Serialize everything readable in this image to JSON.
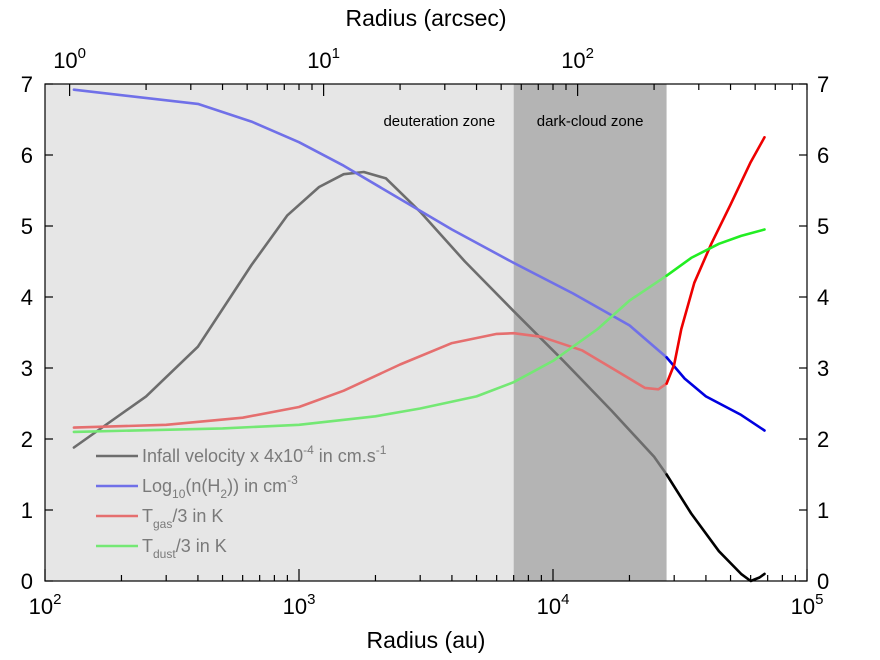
{
  "chart_data": {
    "type": "line",
    "title": "",
    "xlabel": "Radius (au)",
    "x_top_label": "Radius (arcsec)",
    "xscale": "log",
    "xlim": [
      100,
      100000
    ],
    "x_tick_labels": [
      {
        "base": "10",
        "exp": "2",
        "value": 100
      },
      {
        "base": "10",
        "exp": "3",
        "value": 1000
      },
      {
        "base": "10",
        "exp": "4",
        "value": 10000
      },
      {
        "base": "10",
        "exp": "5",
        "value": 100000
      }
    ],
    "x_top_tick_labels": [
      {
        "base": "10",
        "exp": "0",
        "value_au": 125
      },
      {
        "base": "10",
        "exp": "1",
        "value_au": 1250
      },
      {
        "base": "10",
        "exp": "2",
        "value_au": 12500
      }
    ],
    "ylim": [
      0,
      7
    ],
    "y_tick_labels": [
      "0",
      "1",
      "2",
      "3",
      "4",
      "5",
      "6",
      "7"
    ],
    "grid": false,
    "legend_position": "bottom-left",
    "zones": [
      {
        "label": "deuteration zone",
        "x_from": 100,
        "x_to": 7000,
        "color": "#e6e6e6"
      },
      {
        "label": "dark-cloud zone",
        "x_from": 7000,
        "x_to": 28000,
        "color": "#b4b4b4"
      }
    ],
    "series": [
      {
        "name": "Infall velocity x 4x10-4 in cm.s-1",
        "legend": {
          "pre": "Infall velocity x 4x10",
          "sup": "-4",
          "post": " in cm.s",
          "sup2": "-1"
        },
        "color_in_zone": "#6d6d6d",
        "color_outside": "#000000",
        "x": [
          130,
          250,
          400,
          650,
          900,
          1200,
          1500,
          1800,
          2200,
          3000,
          4500,
          7000,
          11000,
          17000,
          25000,
          28000,
          35000,
          45000,
          55000,
          60000,
          65000,
          68000
        ],
        "y": [
          1.88,
          2.6,
          3.3,
          4.45,
          5.15,
          5.55,
          5.73,
          5.76,
          5.67,
          5.2,
          4.5,
          3.8,
          3.1,
          2.4,
          1.75,
          1.5,
          0.95,
          0.42,
          0.1,
          0.0,
          0.05,
          0.1
        ]
      },
      {
        "name": "Log10(n(H2)) in cm-3",
        "legend": {
          "pre": "Log",
          "sub": "10",
          "mid": "(n(H",
          "sub2": "2",
          "post": ")) in cm",
          "sup": "-3"
        },
        "color_in_zone": "#7070e8",
        "color_outside": "#0000e0",
        "x": [
          130,
          400,
          650,
          1000,
          1500,
          2500,
          4000,
          7000,
          12000,
          20000,
          28000,
          33000,
          40000,
          55000,
          68000
        ],
        "y": [
          6.92,
          6.72,
          6.47,
          6.18,
          5.85,
          5.38,
          4.95,
          4.48,
          4.05,
          3.6,
          3.15,
          2.85,
          2.6,
          2.34,
          2.12
        ]
      },
      {
        "name": "Tgas/3 in K",
        "legend": {
          "pre": "T",
          "sub": "gas",
          "post": "/3 in K"
        },
        "color_in_zone": "#e56f6f",
        "color_outside": "#ee0000",
        "x": [
          130,
          300,
          600,
          1000,
          1500,
          2500,
          4000,
          6000,
          7000,
          9000,
          13000,
          18000,
          23000,
          26000,
          28000,
          30000,
          32000,
          36000,
          42000,
          50000,
          60000,
          68000
        ],
        "y": [
          2.16,
          2.2,
          2.3,
          2.45,
          2.68,
          3.05,
          3.35,
          3.48,
          3.49,
          3.44,
          3.25,
          2.95,
          2.72,
          2.7,
          2.78,
          3.05,
          3.55,
          4.2,
          4.75,
          5.3,
          5.9,
          6.25
        ]
      },
      {
        "name": "Tdust/3 in K",
        "legend": {
          "pre": "T",
          "sub": "dust",
          "post": "/3 in K"
        },
        "color_in_zone": "#74e874",
        "color_outside": "#22ee22",
        "x": [
          130,
          500,
          1000,
          2000,
          3000,
          5000,
          7000,
          10000,
          15000,
          20000,
          28000,
          35000,
          45000,
          55000,
          68000
        ],
        "y": [
          2.1,
          2.15,
          2.2,
          2.32,
          2.43,
          2.6,
          2.8,
          3.1,
          3.55,
          3.95,
          4.3,
          4.55,
          4.75,
          4.86,
          4.95
        ]
      }
    ]
  }
}
